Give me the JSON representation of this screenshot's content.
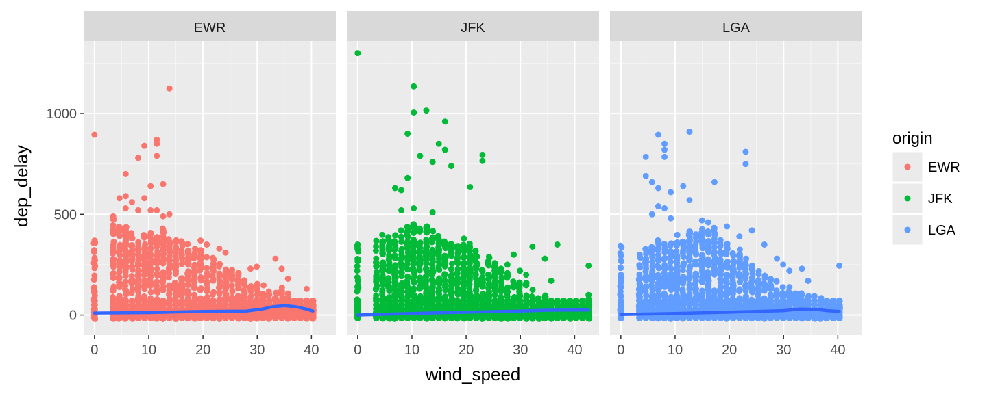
{
  "chart_data": {
    "type": "scatter",
    "facet_by": "origin",
    "xlabel": "wind_speed",
    "ylabel": "dep_delay",
    "xlim": [
      -2,
      44.5
    ],
    "ylim": [
      -100,
      1360
    ],
    "x_ticks": [
      0,
      10,
      20,
      30,
      40
    ],
    "x_tick_labels": [
      "0",
      "10",
      "20",
      "30",
      "40"
    ],
    "y_ticks": [
      0,
      500,
      1000
    ],
    "y_tick_labels": [
      "0",
      "500",
      "1000"
    ],
    "grid": true,
    "panels": [
      {
        "name": "EWR",
        "color": "#F8766D",
        "band_top": [
          [
            0,
            400
          ],
          [
            3.45,
            480
          ],
          [
            4.6,
            440
          ],
          [
            5.75,
            460
          ],
          [
            6.9,
            410
          ],
          [
            8.05,
            390
          ],
          [
            9.2,
            400
          ],
          [
            10.35,
            410
          ],
          [
            11.5,
            410
          ],
          [
            12.66,
            440
          ],
          [
            13.81,
            400
          ],
          [
            14.96,
            390
          ],
          [
            16.11,
            370
          ],
          [
            17.26,
            360
          ],
          [
            18.41,
            330
          ],
          [
            19.56,
            330
          ],
          [
            20.71,
            300
          ],
          [
            21.86,
            290
          ],
          [
            23.01,
            260
          ],
          [
            24.16,
            250
          ],
          [
            25.31,
            230
          ],
          [
            26.46,
            210
          ],
          [
            27.61,
            180
          ],
          [
            28.77,
            170
          ],
          [
            29.92,
            160
          ],
          [
            31.07,
            150
          ],
          [
            32.22,
            130
          ],
          [
            33.37,
            120
          ],
          [
            34.52,
            140
          ],
          [
            35.67,
            110
          ],
          [
            36.82,
            80
          ],
          [
            39.12,
            70
          ],
          [
            40.27,
            60
          ]
        ],
        "outliers": [
          [
            0,
            895
          ],
          [
            3.45,
            490
          ],
          [
            4.6,
            580
          ],
          [
            5.75,
            590
          ],
          [
            5.75,
            700
          ],
          [
            6.9,
            560
          ],
          [
            8.05,
            780
          ],
          [
            9.2,
            840
          ],
          [
            10.35,
            640
          ],
          [
            11.5,
            870
          ],
          [
            11.5,
            850
          ],
          [
            11.5,
            790
          ],
          [
            12.66,
            650
          ],
          [
            13.81,
            1125
          ],
          [
            8.05,
            520
          ],
          [
            10.35,
            520
          ],
          [
            5.75,
            530
          ],
          [
            9.2,
            580
          ],
          [
            11.5,
            520
          ],
          [
            12.66,
            490
          ],
          [
            13.81,
            500
          ],
          [
            19.56,
            370
          ],
          [
            20.71,
            350
          ],
          [
            23.01,
            330
          ],
          [
            24.16,
            310
          ],
          [
            28.77,
            230
          ],
          [
            29.92,
            240
          ],
          [
            33.37,
            280
          ],
          [
            34.52,
            230
          ],
          [
            35.67,
            180
          ],
          [
            39.12,
            130
          ]
        ],
        "smooth": [
          [
            0,
            10
          ],
          [
            10,
            12
          ],
          [
            20,
            18
          ],
          [
            28,
            20
          ],
          [
            31,
            30
          ],
          [
            33,
            42
          ],
          [
            35,
            47
          ],
          [
            37,
            42
          ],
          [
            39,
            30
          ],
          [
            40.27,
            20
          ]
        ]
      },
      {
        "name": "JFK",
        "color": "#00BA38",
        "band_top": [
          [
            0,
            350
          ],
          [
            3.45,
            380
          ],
          [
            4.6,
            400
          ],
          [
            5.75,
            390
          ],
          [
            6.9,
            400
          ],
          [
            8.05,
            420
          ],
          [
            9.2,
            450
          ],
          [
            10.35,
            470
          ],
          [
            11.5,
            440
          ],
          [
            12.66,
            460
          ],
          [
            13.81,
            420
          ],
          [
            14.96,
            410
          ],
          [
            16.11,
            380
          ],
          [
            17.26,
            360
          ],
          [
            18.41,
            350
          ],
          [
            19.56,
            380
          ],
          [
            20.71,
            360
          ],
          [
            21.86,
            330
          ],
          [
            23.01,
            300
          ],
          [
            24.16,
            290
          ],
          [
            25.31,
            260
          ],
          [
            26.46,
            240
          ],
          [
            27.61,
            210
          ],
          [
            28.77,
            190
          ],
          [
            29.92,
            180
          ],
          [
            31.07,
            160
          ],
          [
            32.22,
            140
          ],
          [
            33.37,
            120
          ],
          [
            34.52,
            110
          ],
          [
            35.67,
            90
          ],
          [
            36.82,
            80
          ],
          [
            39.12,
            60
          ],
          [
            42.57,
            50
          ]
        ],
        "outliers": [
          [
            0,
            1300
          ],
          [
            10.35,
            1135
          ],
          [
            10.35,
            1005
          ],
          [
            12.66,
            1015
          ],
          [
            9.2,
            900
          ],
          [
            16.11,
            960
          ],
          [
            14.96,
            850
          ],
          [
            11.5,
            790
          ],
          [
            16.11,
            820
          ],
          [
            13.81,
            760
          ],
          [
            23.01,
            795
          ],
          [
            23.01,
            765
          ],
          [
            17.26,
            740
          ],
          [
            8.05,
            620
          ],
          [
            6.9,
            630
          ],
          [
            9.2,
            680
          ],
          [
            20.71,
            635
          ],
          [
            10.35,
            530
          ],
          [
            13.81,
            510
          ],
          [
            8.05,
            520
          ],
          [
            0,
            350
          ],
          [
            32.22,
            340
          ],
          [
            36.82,
            350
          ],
          [
            34.52,
            280
          ],
          [
            42.57,
            245
          ],
          [
            28.77,
            300
          ],
          [
            27.61,
            250
          ],
          [
            29.92,
            220
          ],
          [
            31.07,
            200
          ],
          [
            35.67,
            170
          ],
          [
            42.57,
            100
          ],
          [
            42.57,
            80
          ],
          [
            42.57,
            60
          ]
        ],
        "smooth": [
          [
            0,
            0
          ],
          [
            10,
            8
          ],
          [
            20,
            14
          ],
          [
            30,
            20
          ],
          [
            35,
            24
          ],
          [
            40,
            25
          ],
          [
            42.57,
            25
          ]
        ]
      },
      {
        "name": "LGA",
        "color": "#619CFF",
        "band_top": [
          [
            0,
            350
          ],
          [
            3.45,
            320
          ],
          [
            4.6,
            330
          ],
          [
            5.75,
            340
          ],
          [
            6.9,
            380
          ],
          [
            8.05,
            370
          ],
          [
            9.2,
            380
          ],
          [
            10.35,
            400
          ],
          [
            11.5,
            390
          ],
          [
            12.66,
            420
          ],
          [
            13.81,
            430
          ],
          [
            14.96,
            430
          ],
          [
            16.11,
            420
          ],
          [
            17.26,
            440
          ],
          [
            18.41,
            390
          ],
          [
            19.56,
            380
          ],
          [
            20.71,
            330
          ],
          [
            21.86,
            330
          ],
          [
            23.01,
            280
          ],
          [
            24.16,
            260
          ],
          [
            25.31,
            230
          ],
          [
            26.46,
            200
          ],
          [
            27.61,
            180
          ],
          [
            28.77,
            170
          ],
          [
            29.92,
            150
          ],
          [
            31.07,
            140
          ],
          [
            32.22,
            130
          ],
          [
            33.37,
            110
          ],
          [
            34.52,
            120
          ],
          [
            35.67,
            100
          ],
          [
            40.27,
            60
          ]
        ],
        "outliers": [
          [
            6.9,
            895
          ],
          [
            8.05,
            850
          ],
          [
            8.05,
            820
          ],
          [
            12.66,
            910
          ],
          [
            8.05,
            785
          ],
          [
            4.6,
            785
          ],
          [
            23.01,
            810
          ],
          [
            23.01,
            750
          ],
          [
            4.6,
            690
          ],
          [
            5.75,
            660
          ],
          [
            6.9,
            630
          ],
          [
            9.2,
            610
          ],
          [
            11.5,
            640
          ],
          [
            17.26,
            660
          ],
          [
            12.66,
            570
          ],
          [
            8.05,
            530
          ],
          [
            6.9,
            540
          ],
          [
            5.75,
            500
          ],
          [
            9.2,
            480
          ],
          [
            14.96,
            470
          ],
          [
            16.11,
            460
          ],
          [
            19.56,
            440
          ],
          [
            21.86,
            390
          ],
          [
            24.16,
            420
          ],
          [
            26.46,
            350
          ],
          [
            28.77,
            280
          ],
          [
            29.92,
            250
          ],
          [
            31.07,
            220
          ],
          [
            33.37,
            230
          ],
          [
            34.52,
            170
          ],
          [
            40.27,
            245
          ],
          [
            40.27,
            30
          ]
        ],
        "smooth": [
          [
            0,
            3
          ],
          [
            10,
            8
          ],
          [
            20,
            14
          ],
          [
            30,
            22
          ],
          [
            33,
            30
          ],
          [
            36,
            28
          ],
          [
            38,
            22
          ],
          [
            40.27,
            18
          ]
        ]
      }
    ],
    "smooth_color": "#3366FF",
    "legend": {
      "title": "origin",
      "placement": "right",
      "entries": [
        {
          "label": "EWR",
          "color": "#F8766D"
        },
        {
          "label": "JFK",
          "color": "#00BA38"
        },
        {
          "label": "LGA",
          "color": "#619CFF"
        }
      ]
    }
  }
}
